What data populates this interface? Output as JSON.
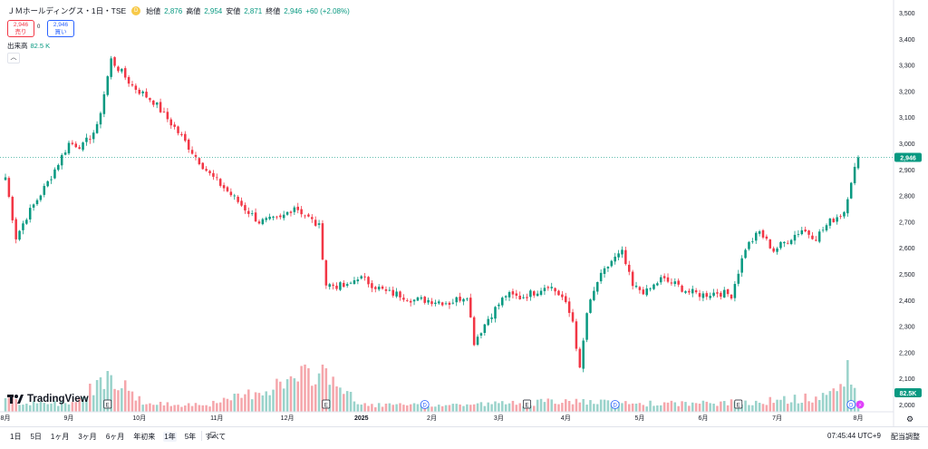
{
  "header": {
    "title": "ＪＭホールディングス・1日・TSE",
    "badge": "D",
    "open_label": "始値",
    "open_value": "2,876",
    "high_label": "高値",
    "high_value": "2,954",
    "low_label": "安値",
    "low_value": "2,871",
    "close_label": "終値",
    "close_value": "2,946",
    "change": "+60 (+2.08%)"
  },
  "trade": {
    "sell_price": "2,946",
    "sell_label": "売り",
    "spread": "0",
    "buy_price": "2,946",
    "buy_label": "買い"
  },
  "volume_legend": {
    "label": "出来高",
    "value": "82.5 K"
  },
  "logo": "TradingView",
  "colors": {
    "up": "#089981",
    "down": "#f23645",
    "up_vol": "#9ad3cb",
    "down_vol": "#f5a6ab",
    "price_line": "#089981"
  },
  "chart_data": {
    "type": "candlestick",
    "y_ticks": [
      "3,500",
      "3,400",
      "3,300",
      "3,200",
      "3,100",
      "3,000",
      "2,900",
      "2,800",
      "2,700",
      "2,600",
      "2,500",
      "2,400",
      "2,300",
      "2,200",
      "2,100",
      "2,000"
    ],
    "ylim": [
      2000,
      3500
    ],
    "x_labels": [
      {
        "label": "8月",
        "i": 0
      },
      {
        "label": "9月",
        "i": 18
      },
      {
        "label": "10月",
        "i": 38
      },
      {
        "label": "11月",
        "i": 60
      },
      {
        "label": "12月",
        "i": 80
      },
      {
        "label": "2025",
        "i": 101
      },
      {
        "label": "2月",
        "i": 121
      },
      {
        "label": "3月",
        "i": 140
      },
      {
        "label": "4月",
        "i": 159
      },
      {
        "label": "5月",
        "i": 180
      },
      {
        "label": "6月",
        "i": 198
      },
      {
        "label": "7月",
        "i": 219
      },
      {
        "label": "8月",
        "i": 242
      }
    ],
    "last_price": "2,946",
    "last_value": 2946,
    "volume_label": "82.5K",
    "event_markers": [
      {
        "type": "E",
        "i": 29
      },
      {
        "type": "E",
        "i": 91
      },
      {
        "type": "D",
        "i": 119
      },
      {
        "type": "E",
        "i": 148
      },
      {
        "type": "D",
        "i": 173
      },
      {
        "type": "E",
        "i": 208
      },
      {
        "type": "D",
        "i": 240
      },
      {
        "type": "S",
        "i": 242
      }
    ],
    "anchors": [
      [
        0,
        2870
      ],
      [
        3,
        2640
      ],
      [
        6,
        2720
      ],
      [
        12,
        2850
      ],
      [
        18,
        3000
      ],
      [
        22,
        2990
      ],
      [
        26,
        3060
      ],
      [
        30,
        3320
      ],
      [
        36,
        3220
      ],
      [
        42,
        3160
      ],
      [
        48,
        3060
      ],
      [
        54,
        2950
      ],
      [
        58,
        2880
      ],
      [
        62,
        2830
      ],
      [
        68,
        2750
      ],
      [
        72,
        2700
      ],
      [
        78,
        2710
      ],
      [
        82,
        2760
      ],
      [
        89,
        2680
      ],
      [
        91,
        2460
      ],
      [
        97,
        2450
      ],
      [
        100,
        2490
      ],
      [
        104,
        2460
      ],
      [
        108,
        2430
      ],
      [
        112,
        2420
      ],
      [
        116,
        2400
      ],
      [
        120,
        2400
      ],
      [
        126,
        2390
      ],
      [
        131,
        2420
      ],
      [
        133,
        2240
      ],
      [
        137,
        2330
      ],
      [
        142,
        2420
      ],
      [
        146,
        2410
      ],
      [
        150,
        2430
      ],
      [
        154,
        2460
      ],
      [
        158,
        2410
      ],
      [
        161,
        2320
      ],
      [
        163,
        2130
      ],
      [
        165,
        2350
      ],
      [
        168,
        2470
      ],
      [
        172,
        2550
      ],
      [
        175,
        2580
      ],
      [
        178,
        2450
      ],
      [
        182,
        2430
      ],
      [
        186,
        2480
      ],
      [
        190,
        2460
      ],
      [
        194,
        2430
      ],
      [
        198,
        2420
      ],
      [
        202,
        2430
      ],
      [
        206,
        2420
      ],
      [
        210,
        2600
      ],
      [
        214,
        2660
      ],
      [
        218,
        2590
      ],
      [
        222,
        2630
      ],
      [
        226,
        2670
      ],
      [
        230,
        2640
      ],
      [
        234,
        2700
      ],
      [
        238,
        2740
      ],
      [
        240,
        2860
      ],
      [
        242,
        2946
      ]
    ],
    "volume_anchors": [
      [
        0,
        25
      ],
      [
        6,
        15
      ],
      [
        20,
        18
      ],
      [
        29,
        75
      ],
      [
        40,
        14
      ],
      [
        60,
        16
      ],
      [
        91,
        80
      ],
      [
        100,
        14
      ],
      [
        119,
        12
      ],
      [
        140,
        16
      ],
      [
        160,
        20
      ],
      [
        175,
        16
      ],
      [
        200,
        16
      ],
      [
        220,
        22
      ],
      [
        230,
        28
      ],
      [
        236,
        38
      ],
      [
        239,
        95
      ],
      [
        240,
        50
      ],
      [
        242,
        20
      ]
    ],
    "volume_max": 100
  }
}
